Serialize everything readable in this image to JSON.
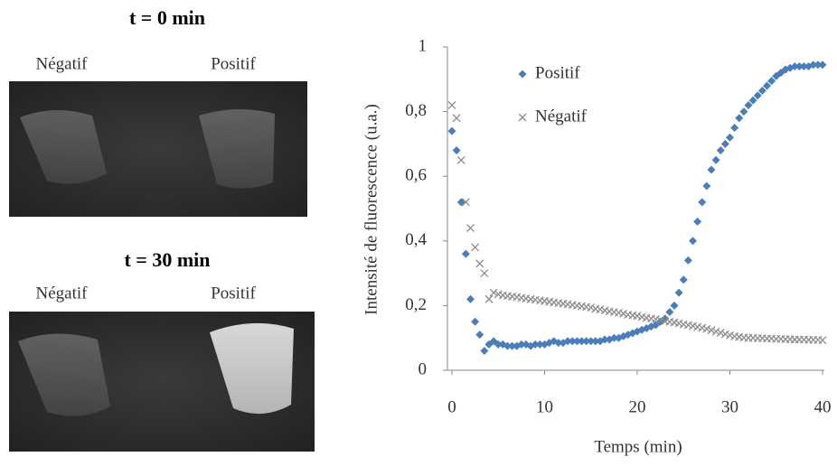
{
  "images": [
    {
      "title": "t = 0 min",
      "labels": [
        "Négatif",
        "Positif"
      ]
    },
    {
      "title": "t = 30 min",
      "labels": [
        "Négatif",
        "Positif"
      ]
    }
  ],
  "chart_data": {
    "type": "scatter",
    "xlabel": "Temps (min)",
    "ylabel": "Intensité de fluorescence (u.a.)",
    "xlim": [
      0,
      40
    ],
    "xticks": [
      0,
      10,
      20,
      30,
      40
    ],
    "ylim": [
      0,
      1
    ],
    "yticks": [
      0,
      {
        "value": 0.2,
        "label": "0,2"
      },
      {
        "value": 0.4,
        "label": "0,4"
      },
      {
        "value": 0.6,
        "label": "0,6"
      },
      {
        "value": 0.8,
        "label": "0,8"
      },
      1
    ],
    "grid": false,
    "legend": "upper left",
    "x": [
      0,
      0.5,
      1,
      1.5,
      2,
      2.5,
      3,
      3.5,
      4,
      4.5,
      5,
      5.5,
      6,
      6.5,
      7,
      7.5,
      8,
      8.5,
      9,
      9.5,
      10,
      10.5,
      11,
      11.5,
      12,
      12.5,
      13,
      13.5,
      14,
      14.5,
      15,
      15.5,
      16,
      16.5,
      17,
      17.5,
      18,
      18.5,
      19,
      19.5,
      20,
      20.5,
      21,
      21.5,
      22,
      22.5,
      23,
      23.5,
      24,
      24.5,
      25,
      25.5,
      26,
      26.5,
      27,
      27.5,
      28,
      28.5,
      29,
      29.5,
      30,
      30.5,
      31,
      31.5,
      32,
      32.5,
      33,
      33.5,
      34,
      34.5,
      35,
      35.5,
      36,
      36.5,
      37,
      37.5,
      38,
      38.5,
      39,
      39.5,
      40
    ],
    "series": [
      {
        "name": "Positif",
        "color": "#4a7ebb",
        "marker": "diamond",
        "values": [
          0.74,
          0.68,
          0.52,
          0.36,
          0.22,
          0.15,
          0.11,
          0.06,
          0.08,
          0.09,
          0.08,
          0.08,
          0.075,
          0.075,
          0.075,
          0.08,
          0.08,
          0.075,
          0.08,
          0.08,
          0.08,
          0.085,
          0.09,
          0.085,
          0.085,
          0.09,
          0.09,
          0.09,
          0.09,
          0.09,
          0.09,
          0.09,
          0.09,
          0.095,
          0.095,
          0.1,
          0.1,
          0.105,
          0.11,
          0.115,
          0.12,
          0.125,
          0.13,
          0.135,
          0.14,
          0.15,
          0.16,
          0.18,
          0.2,
          0.24,
          0.28,
          0.34,
          0.4,
          0.46,
          0.52,
          0.57,
          0.62,
          0.65,
          0.68,
          0.7,
          0.72,
          0.75,
          0.78,
          0.8,
          0.82,
          0.835,
          0.85,
          0.865,
          0.88,
          0.895,
          0.91,
          0.92,
          0.93,
          0.935,
          0.94,
          0.94,
          0.94,
          0.94,
          0.945,
          0.945,
          0.945
        ]
      },
      {
        "name": "Négatif",
        "color": "#8c8c8c",
        "marker": "x",
        "values": [
          0.82,
          0.78,
          0.65,
          0.52,
          0.44,
          0.38,
          0.33,
          0.3,
          0.22,
          0.24,
          0.235,
          0.232,
          0.23,
          0.228,
          0.226,
          0.224,
          0.222,
          0.22,
          0.218,
          0.216,
          0.214,
          0.212,
          0.21,
          0.208,
          0.206,
          0.204,
          0.202,
          0.2,
          0.198,
          0.196,
          0.194,
          0.19,
          0.188,
          0.185,
          0.182,
          0.18,
          0.178,
          0.175,
          0.172,
          0.17,
          0.168,
          0.165,
          0.162,
          0.16,
          0.158,
          0.155,
          0.152,
          0.15,
          0.148,
          0.145,
          0.142,
          0.14,
          0.137,
          0.134,
          0.131,
          0.128,
          0.124,
          0.12,
          0.116,
          0.112,
          0.108,
          0.105,
          0.103,
          0.101,
          0.1,
          0.1,
          0.099,
          0.099,
          0.098,
          0.098,
          0.097,
          0.097,
          0.096,
          0.096,
          0.095,
          0.095,
          0.095,
          0.094,
          0.094,
          0.094,
          0.093
        ]
      }
    ]
  }
}
